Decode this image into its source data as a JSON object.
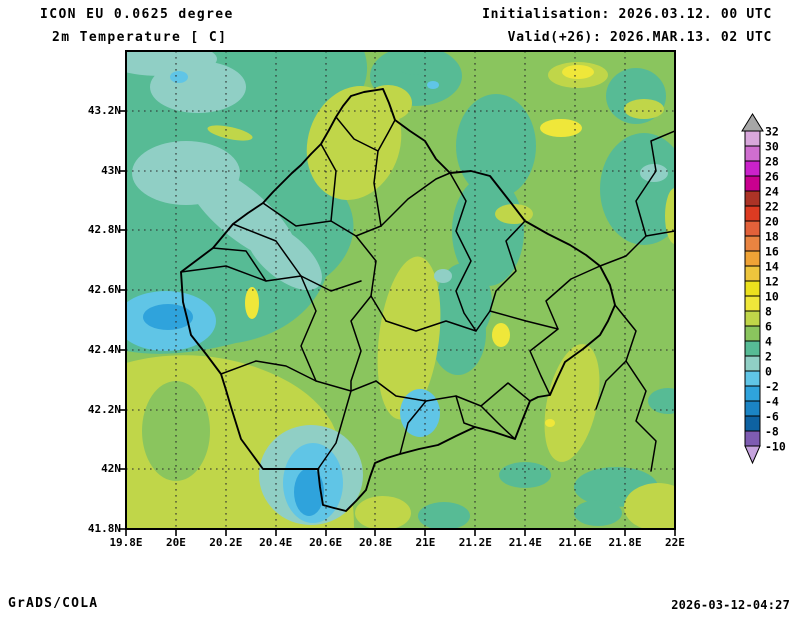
{
  "header": {
    "model_line": "ICON EU 0.0625 degree",
    "variable_line": "2m Temperature [ C]",
    "init_line": "Initialisation: 2026.03.12. 00 UTC",
    "valid_line": "Valid(+26): 2026.MAR.13. 02 UTC"
  },
  "footer": {
    "left": "GrADS/COLA",
    "right": "2026-03-12-04:27"
  },
  "axes": {
    "y_tick_labels": [
      "43.2N",
      "43N",
      "42.8N",
      "42.6N",
      "42.4N",
      "42.2N",
      "42N",
      "41.8N"
    ],
    "x_tick_labels": [
      "19.8E",
      "20E",
      "20.2E",
      "20.4E",
      "20.6E",
      "20.8E",
      "21E",
      "21.2E",
      "21.4E",
      "21.6E",
      "21.8E",
      "22E"
    ]
  },
  "colorbar": {
    "tick_labels": [
      "32",
      "30",
      "28",
      "26",
      "24",
      "22",
      "20",
      "18",
      "16",
      "14",
      "12",
      "10",
      "8",
      "6",
      "4",
      "2",
      "0",
      "-2",
      "-4",
      "-6",
      "-8",
      "-10"
    ],
    "band_colors": [
      "#d9a7dc",
      "#d06ed0",
      "#cb22cb",
      "#c9008f",
      "#ac3326",
      "#dd3b22",
      "#e2613a",
      "#e98441",
      "#efa336",
      "#edc53d",
      "#ece11e",
      "#efe73a",
      "#c0d649",
      "#8ac55e",
      "#57bb95",
      "#90cfc5",
      "#60c5e6",
      "#2fa3dc",
      "#1b84c4",
      "#0e62a2",
      "#7e5cb2"
    ],
    "arrow_top_color": "#a6a6a6",
    "arrow_bottom_color": "#c6a4de"
  }
}
